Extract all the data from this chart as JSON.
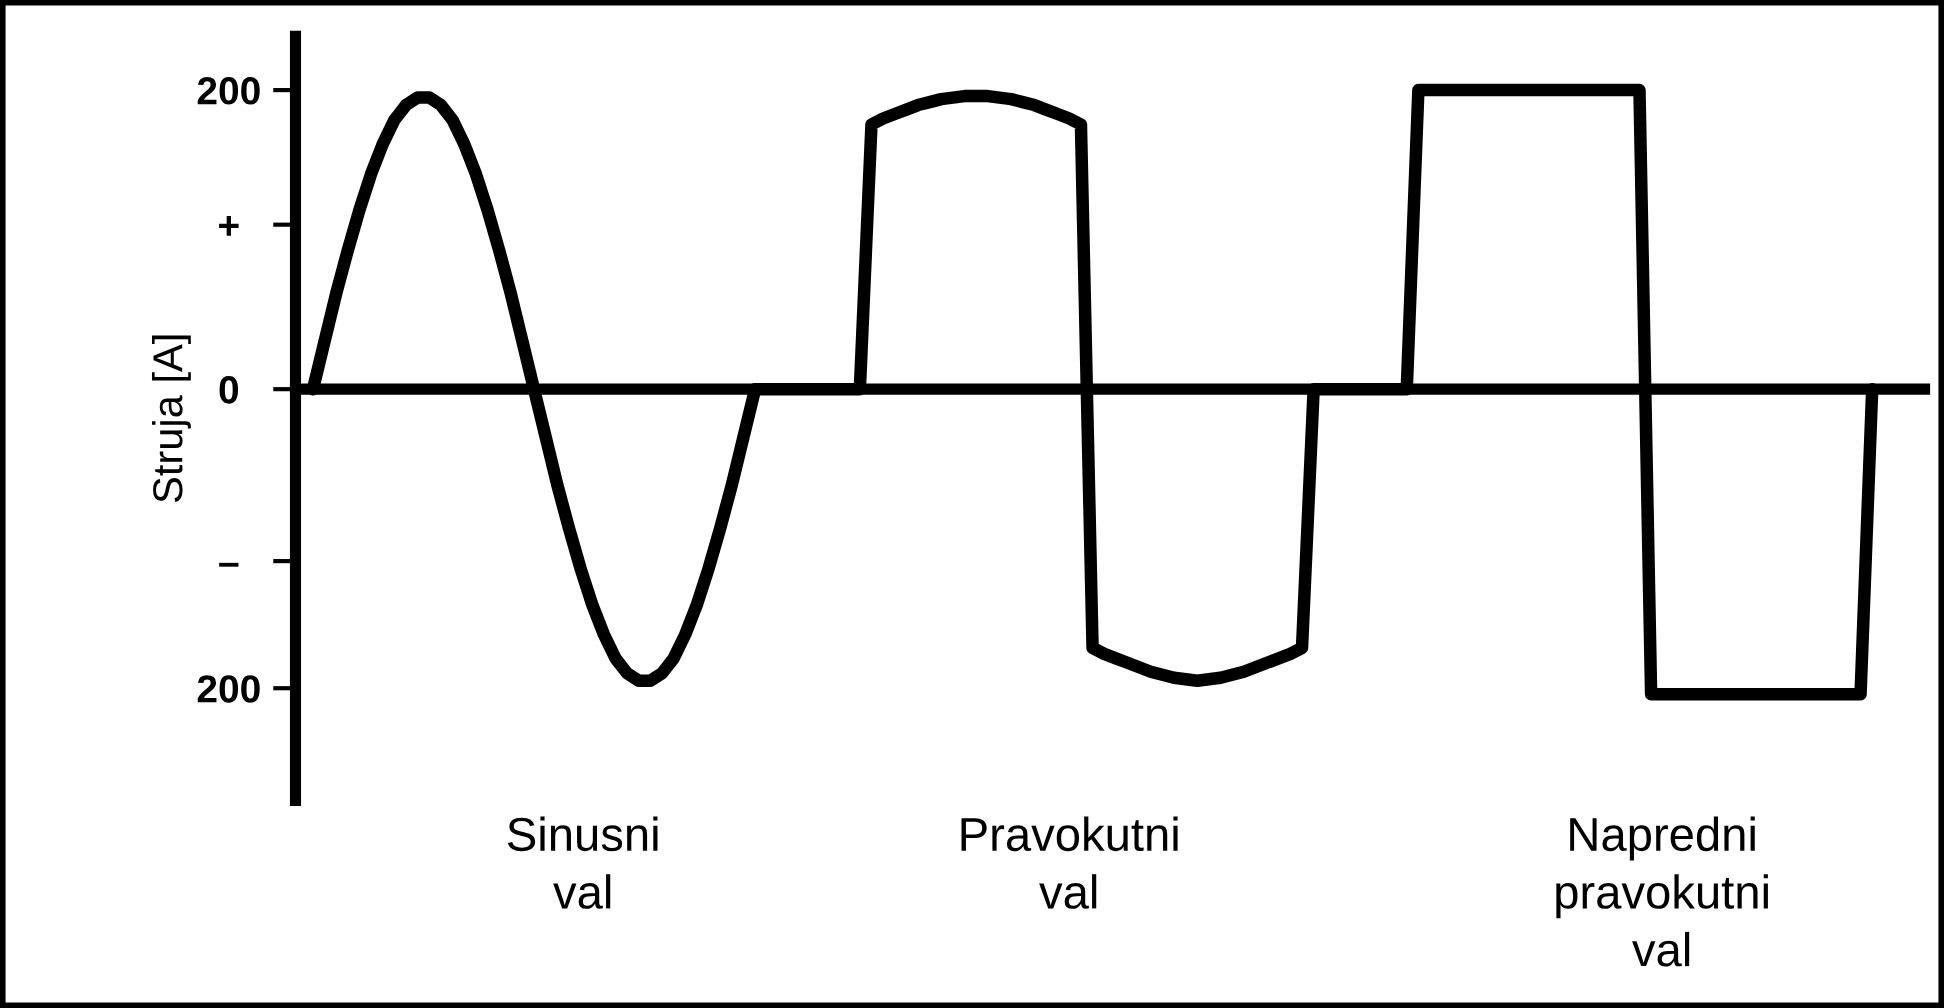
{
  "chart_data": {
    "type": "line",
    "ylabel": "Struja [A]",
    "ylim": [
      -275,
      236
    ],
    "yticks": [
      {
        "value": 200,
        "label": "200"
      },
      {
        "value": 110,
        "label": "+"
      },
      {
        "value": 0,
        "label": "0"
      },
      {
        "value": -115,
        "label": "–"
      },
      {
        "value": -200,
        "label": "200"
      }
    ],
    "tick_labels": "y",
    "categories": [
      null,
      null,
      null,
      null,
      null,
      null,
      null,
      null,
      null,
      null,
      null,
      null,
      null,
      null,
      null,
      null,
      null,
      null,
      null,
      null,
      null,
      null,
      null,
      null,
      null,
      null,
      null,
      null,
      null,
      null,
      null,
      null,
      null,
      null,
      null,
      null,
      null,
      null,
      null,
      null,
      null,
      null,
      null,
      null,
      null,
      null,
      null,
      null,
      null,
      null,
      null,
      null,
      null,
      null,
      null,
      null,
      null,
      null,
      null,
      null,
      null,
      null,
      null,
      null,
      null,
      null,
      null,
      null,
      null,
      null,
      null,
      null,
      null,
      null,
      null,
      null,
      null,
      null,
      null,
      null,
      null,
      null,
      null,
      null,
      null,
      null,
      null,
      null,
      null,
      null,
      null,
      null,
      null,
      null,
      null,
      null,
      null,
      null,
      null,
      null,
      null,
      null,
      null,
      null,
      null,
      null,
      null,
      null,
      null,
      null,
      null,
      null,
      null,
      null,
      null,
      null,
      null,
      null,
      null,
      null,
      null,
      null,
      null,
      null,
      null,
      null,
      null,
      null,
      null,
      null,
      null,
      null,
      null,
      null,
      null,
      null,
      null,
      null,
      null,
      null
    ],
    "series": [
      {
        "color": "#000000",
        "values": [
          null,
          0,
          32,
          64,
          93,
          120,
          144,
          164,
          180,
          190,
          195,
          195,
          190,
          180,
          164,
          144,
          120,
          93,
          64,
          32,
          0,
          -32,
          -64,
          -93,
          -120,
          -144,
          -164,
          -180,
          -190,
          -195,
          -195,
          -190,
          -180,
          -164,
          -144,
          -120,
          -93,
          -64,
          -32,
          0,
          0,
          0,
          0,
          0,
          0,
          0,
          0,
          0,
          0,
          177,
          181,
          184,
          187,
          190,
          192,
          194,
          195,
          196,
          196,
          196,
          195,
          194,
          192,
          190,
          187,
          184,
          181,
          177,
          -173,
          -177,
          -180,
          -183,
          -186,
          -189,
          -191,
          -193,
          -194,
          -195,
          -194,
          -193,
          -191,
          -189,
          -186,
          -183,
          -180,
          -177,
          -173,
          0,
          0,
          0,
          0,
          0,
          0,
          0,
          0,
          0,
          200,
          200,
          200,
          200,
          200,
          200,
          200,
          200,
          200,
          200,
          200,
          200,
          200,
          200,
          200,
          200,
          200,
          200,
          200,
          200,
          -204,
          -204,
          -204,
          -204,
          -204,
          -204,
          -204,
          -204,
          -204,
          -204,
          -204,
          -204,
          -204,
          -204,
          -204,
          -204,
          -204,
          -204,
          -204,
          0,
          null,
          null,
          null,
          null
        ]
      }
    ],
    "annotations": [
      "Sinusni\nval",
      "Pravokutni\nval",
      "Napredni\npravokutni\nval"
    ]
  }
}
